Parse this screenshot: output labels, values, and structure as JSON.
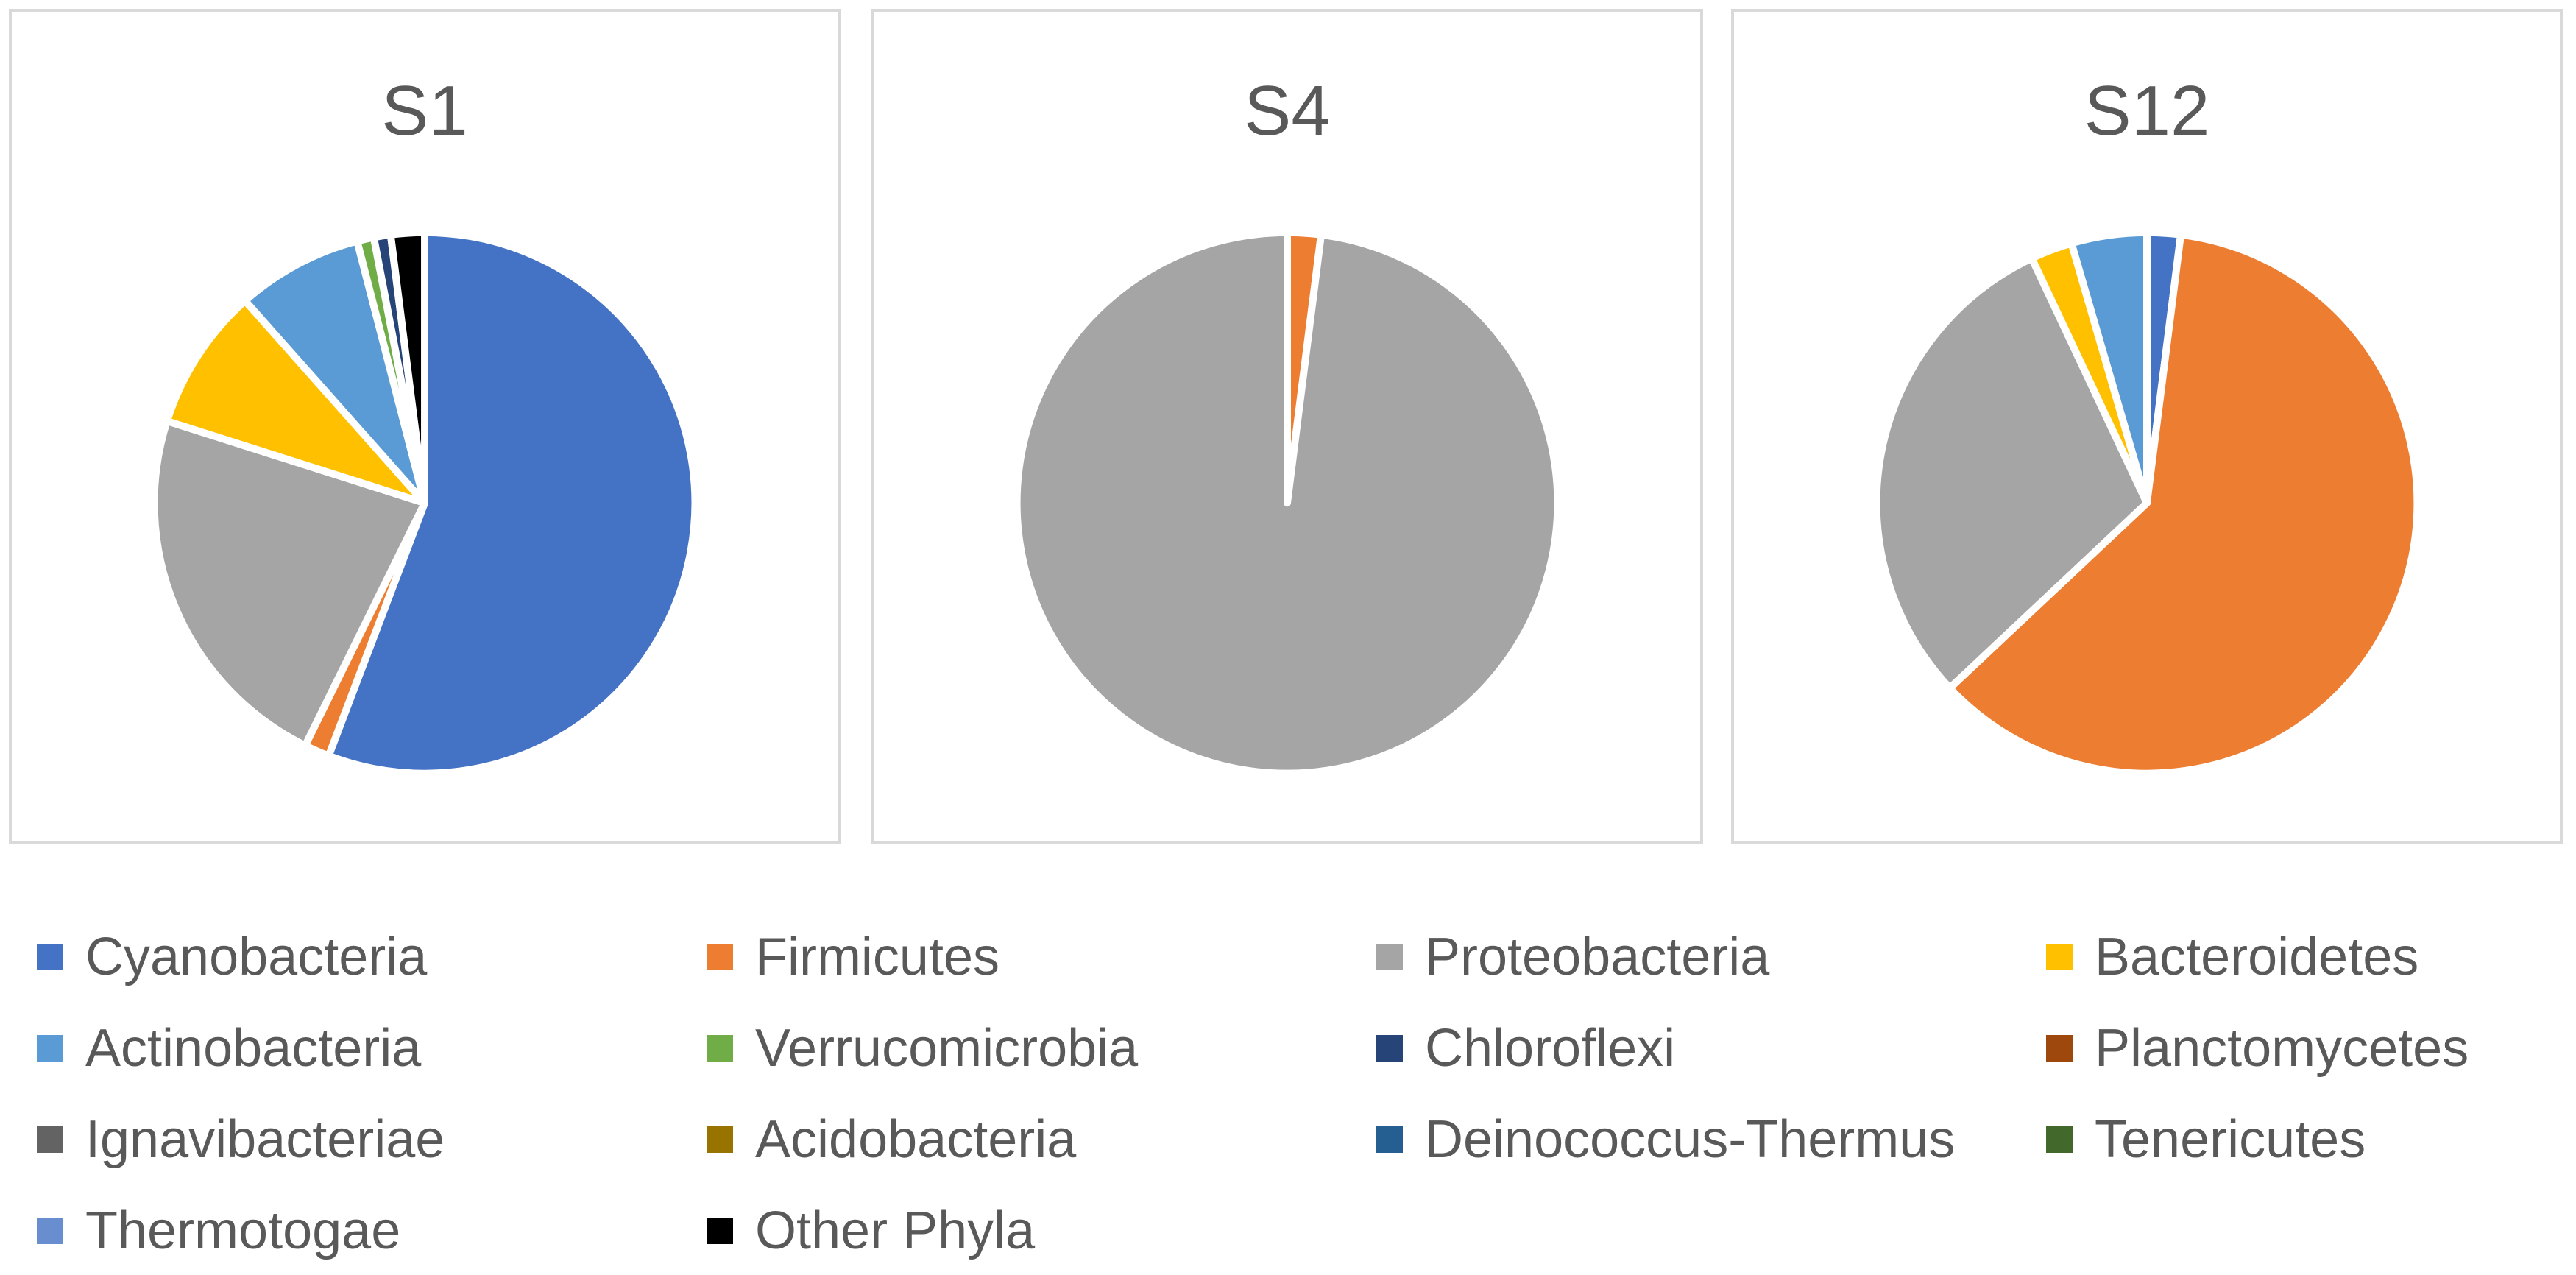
{
  "colors": {
    "Cyanobacteria": "#4472C4",
    "Firmicutes": "#ED7D31",
    "Proteobacteria": "#A5A5A5",
    "Bacteroidetes": "#FFC000",
    "Actinobacteria": "#5B9BD5",
    "Verrucomicrobia": "#70AD47",
    "Chloroflexi": "#264478",
    "Planctomycetes": "#9E480E",
    "Ignavibacteriae": "#636363",
    "Acidobacteria": "#997300",
    "Deinococcus-Thermus": "#255E91",
    "Tenericutes": "#43682B",
    "Thermotogae": "#698ED0",
    "Other Phyla": "#000000"
  },
  "chart_data": [
    {
      "type": "pie",
      "title": "S1",
      "categories": [
        "Cyanobacteria",
        "Firmicutes",
        "Proteobacteria",
        "Bacteroidetes",
        "Actinobacteria",
        "Verrucomicrobia",
        "Chloroflexi",
        "Other Phyla"
      ],
      "values": [
        55.5,
        1.5,
        22.5,
        8.5,
        7.5,
        1.0,
        1.0,
        2.0
      ]
    },
    {
      "type": "pie",
      "title": "S4",
      "categories": [
        "Firmicutes",
        "Proteobacteria"
      ],
      "values": [
        2.0,
        98.0
      ]
    },
    {
      "type": "pie",
      "title": "S12",
      "categories": [
        "Cyanobacteria",
        "Firmicutes",
        "Proteobacteria",
        "Bacteroidetes",
        "Actinobacteria"
      ],
      "values": [
        2.0,
        61.0,
        30.0,
        2.5,
        4.5
      ]
    }
  ],
  "legend": {
    "columns": 4,
    "items": [
      "Cyanobacteria",
      "Firmicutes",
      "Proteobacteria",
      "Bacteroidetes",
      "Actinobacteria",
      "Verrucomicrobia",
      "Chloroflexi",
      "Planctomycetes",
      "Ignavibacteriae",
      "Acidobacteria",
      "Deinococcus-Thermus",
      "Tenericutes",
      "Thermotogae",
      "Other Phyla"
    ]
  }
}
